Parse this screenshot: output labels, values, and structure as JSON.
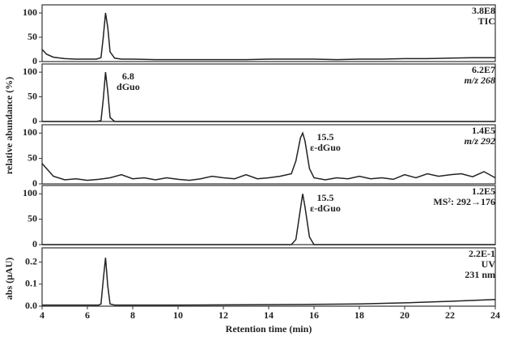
{
  "ylabel": "relative abundance (%)",
  "chart_data": [
    {
      "type": "line",
      "scale": "3.8E8",
      "trace": "TIC",
      "color": "#222222",
      "xlim": [
        4,
        24
      ],
      "ylim": [
        0,
        110
      ],
      "yticks": [
        0,
        50,
        100
      ],
      "x": [
        4,
        4.2,
        4.5,
        5,
        5.5,
        6,
        6.4,
        6.6,
        6.7,
        6.8,
        6.9,
        7.0,
        7.2,
        7.5,
        8,
        9,
        10,
        11,
        12,
        13,
        14,
        15,
        16,
        17,
        18,
        19,
        20,
        21,
        22,
        23,
        24
      ],
      "values": [
        25,
        15,
        9,
        6,
        5,
        5,
        5,
        8,
        50,
        100,
        70,
        20,
        7,
        5,
        5,
        4,
        4,
        4,
        4,
        4,
        5,
        5,
        5,
        4,
        5,
        5,
        6,
        6,
        7,
        8,
        8
      ]
    },
    {
      "type": "line",
      "scale": "6.2E7",
      "trace": "m/z 268",
      "peak_labels": [
        "6.8",
        "dGuo"
      ],
      "color": "#222222",
      "xlim": [
        4,
        24
      ],
      "ylim": [
        0,
        110
      ],
      "yticks": [
        0,
        50,
        100
      ],
      "x": [
        4,
        4.2,
        4.5,
        5,
        5.5,
        6,
        6.4,
        6.6,
        6.7,
        6.8,
        6.9,
        7.0,
        7.2,
        7.5,
        8,
        9,
        10,
        11,
        12,
        13,
        14,
        15,
        16,
        17,
        18,
        19,
        20,
        21,
        22,
        23,
        24
      ],
      "values": [
        0,
        0,
        0,
        0,
        0,
        0,
        0,
        2,
        45,
        100,
        60,
        8,
        0,
        0,
        0,
        0,
        0,
        0,
        0,
        0,
        0,
        0,
        0,
        0,
        0,
        0,
        0,
        0,
        0,
        0,
        0
      ]
    },
    {
      "type": "line",
      "scale": "1.4E5",
      "trace": "m/z 292",
      "peak_labels": [
        "15.5",
        "ε-dGuo"
      ],
      "color": "#222222",
      "xlim": [
        4,
        24
      ],
      "ylim": [
        0,
        110
      ],
      "yticks": [
        0,
        50,
        100
      ],
      "x": [
        4,
        4.5,
        5,
        5.5,
        6,
        6.5,
        7,
        7.5,
        8,
        8.5,
        9,
        9.5,
        10,
        10.5,
        11,
        11.5,
        12,
        12.5,
        13,
        13.5,
        14,
        14.5,
        15,
        15.2,
        15.4,
        15.5,
        15.6,
        15.8,
        16,
        16.5,
        17,
        17.5,
        18,
        18.5,
        19,
        19.5,
        20,
        20.5,
        21,
        21.5,
        22,
        22.5,
        23,
        23.5,
        24
      ],
      "values": [
        40,
        15,
        8,
        10,
        7,
        9,
        12,
        18,
        10,
        12,
        8,
        12,
        9,
        7,
        10,
        15,
        12,
        10,
        18,
        10,
        12,
        15,
        20,
        45,
        90,
        100,
        85,
        30,
        12,
        8,
        12,
        10,
        15,
        10,
        12,
        9,
        18,
        12,
        20,
        15,
        18,
        20,
        14,
        24,
        12
      ]
    },
    {
      "type": "line",
      "scale": "1.2E5",
      "trace": "MS²: 292→176",
      "peak_labels": [
        "15.5",
        "ε-dGuo"
      ],
      "color": "#222222",
      "xlim": [
        4,
        24
      ],
      "ylim": [
        0,
        110
      ],
      "yticks": [
        0,
        50,
        100
      ],
      "x": [
        4,
        8,
        12,
        14,
        15,
        15.2,
        15.4,
        15.5,
        15.6,
        15.8,
        16,
        18,
        24
      ],
      "values": [
        0,
        0,
        0,
        0,
        0,
        10,
        70,
        100,
        75,
        15,
        0,
        0,
        0
      ]
    },
    {
      "type": "line",
      "scale": "2.2E-1",
      "trace": "UV",
      "wavelength": "231 nm",
      "ylabel": "abs (μAU)",
      "xlabel": "Retention time (min)",
      "color": "#222222",
      "xlim": [
        4,
        24
      ],
      "ylim": [
        0,
        0.25
      ],
      "yticks": [
        {
          "value": 0,
          "label": "0.0"
        },
        0.1,
        0.2
      ],
      "xticks": [
        4,
        6,
        8,
        10,
        12,
        14,
        16,
        18,
        20,
        22,
        24
      ],
      "x": [
        4,
        5,
        6,
        6.5,
        6.6,
        6.7,
        6.8,
        6.9,
        7.0,
        7.2,
        8,
        10,
        12,
        14,
        16,
        18,
        20,
        22,
        24
      ],
      "values": [
        0.005,
        0.005,
        0.005,
        0.005,
        0.01,
        0.12,
        0.22,
        0.09,
        0.01,
        0.005,
        0.005,
        0.005,
        0.006,
        0.007,
        0.008,
        0.01,
        0.015,
        0.022,
        0.03
      ]
    }
  ]
}
